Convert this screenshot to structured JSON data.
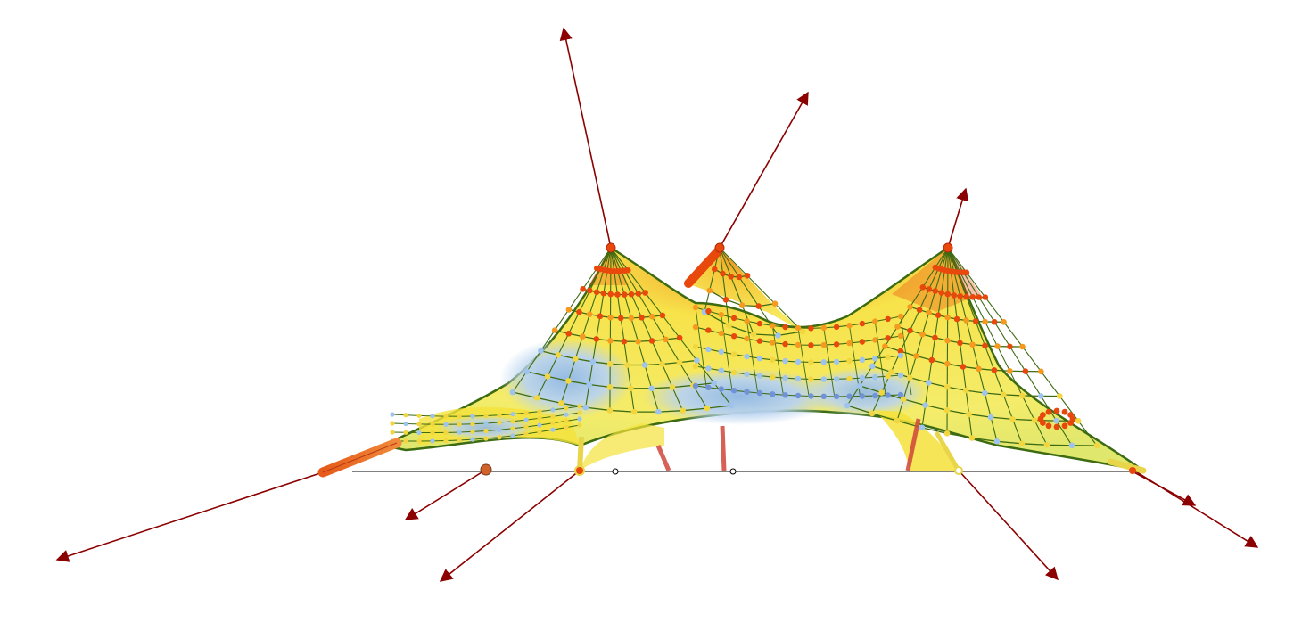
{
  "scene": {
    "type": "tensile membrane structure analysis view",
    "colors": {
      "background": "#ffffff",
      "reaction_arrow": "#8b0000",
      "mesh_edge": "#3d6b12",
      "high_stress": "#e8480c",
      "mid_stress": "#f5e23a",
      "low_stress": "#9ec3ec",
      "ground_line": "#000000"
    },
    "masts": 3,
    "tie_downs": 2,
    "reaction_arrows": 9,
    "has_ground_line": true,
    "has_legend": false,
    "has_text": false
  }
}
